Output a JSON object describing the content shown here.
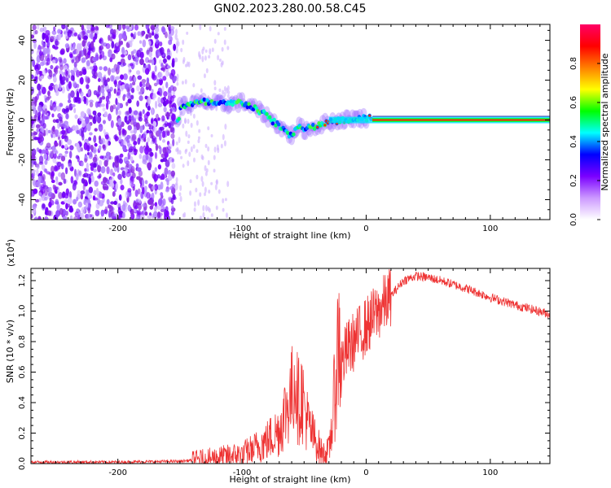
{
  "title": "GN02.2023.280.00.58.C45",
  "chart_data": [
    {
      "type": "heatmap",
      "xlabel": "Height of straight line (km)",
      "ylabel": "Frequency (Hz)",
      "xlim": [
        -270,
        148
      ],
      "ylim": [
        -50,
        48
      ],
      "x_ticks": [
        -200,
        -100,
        0,
        100
      ],
      "y_ticks": [
        -40,
        -20,
        0,
        20,
        40
      ],
      "colorbar": {
        "label": "Normalized spectral amplitude",
        "range": [
          0,
          1
        ],
        "ticks": [
          0.0,
          0.2,
          0.4,
          0.6,
          0.8
        ],
        "colors": [
          "#ffffff",
          "#cc99ff",
          "#7a00ff",
          "#0000ff",
          "#00ffff",
          "#00ff00",
          "#ffff00",
          "#ff8000",
          "#ff0000",
          "#ff0066"
        ]
      },
      "trace": {
        "x": [
          -150,
          -140,
          -130,
          -120,
          -110,
          -100,
          -90,
          -80,
          -70,
          -60,
          -55,
          -50,
          -40,
          -30,
          -20,
          -10,
          0,
          10,
          148
        ],
        "y": [
          7,
          8,
          9,
          8,
          8,
          9,
          6,
          2,
          -3,
          -8,
          -3,
          -5,
          -3,
          -1,
          0,
          1,
          1,
          0,
          0
        ]
      },
      "grid": false
    },
    {
      "type": "line",
      "xlabel": "Height of straight line (km)",
      "ylabel": "SNR (10 * v/v)",
      "y_multiplier": "(x10^4)",
      "multiplier_base": "(x10",
      "multiplier_exp": "4",
      "multiplier_close": ")",
      "xlim": [
        -270,
        148
      ],
      "ylim": [
        0,
        1.28
      ],
      "x_ticks": [
        -200,
        -100,
        0,
        100
      ],
      "y_ticks": [
        0.0,
        0.2,
        0.4,
        0.6,
        0.8,
        1.0,
        1.2
      ],
      "series_color": "#ee3333",
      "series": [
        {
          "x": [
            -270,
            -200,
            -150,
            -130,
            -110,
            -100,
            -90,
            -80,
            -70,
            -65,
            -60,
            -57,
            -55,
            -52,
            -48,
            -45,
            -40,
            -35,
            -30,
            -27,
            -25,
            -22,
            -20,
            -15,
            -10,
            0,
            10,
            20,
            30,
            40,
            50,
            60,
            80,
            100,
            120,
            148
          ],
          "y": [
            0.01,
            0.01,
            0.015,
            0.03,
            0.05,
            0.06,
            0.1,
            0.15,
            0.22,
            0.35,
            0.45,
            0.6,
            0.4,
            0.45,
            0.3,
            0.22,
            0.14,
            0.06,
            0.08,
            0.3,
            0.5,
            0.85,
            0.65,
            0.75,
            0.8,
            0.9,
            1.0,
            1.1,
            1.2,
            1.23,
            1.22,
            1.2,
            1.15,
            1.09,
            1.04,
            0.98
          ]
        }
      ],
      "grid": false
    }
  ]
}
